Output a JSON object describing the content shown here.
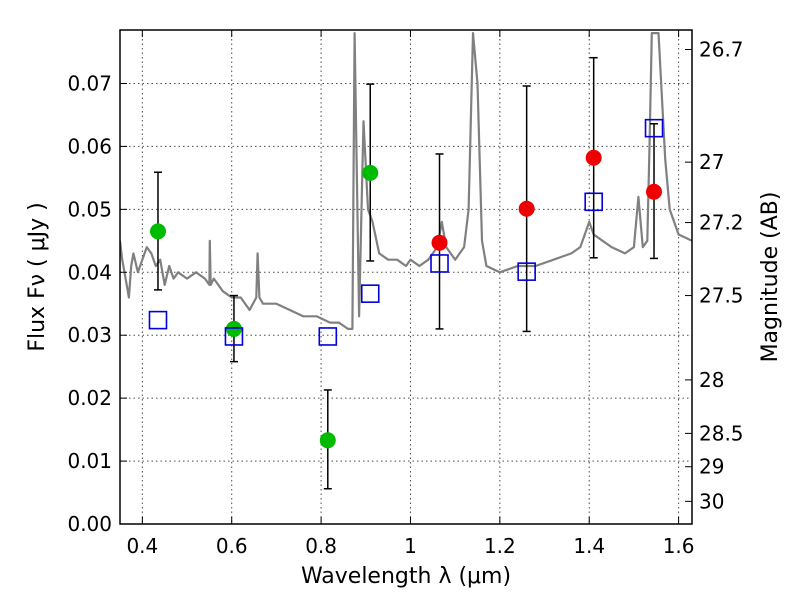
{
  "chart_data": {
    "type": "scatter",
    "title": "",
    "xlabel": "Wavelength  λ (μm)",
    "ylabel": "Flux  Fν  ( μJy )",
    "ylabel_right": "Magnitude (AB)",
    "xlim": [
      0.35,
      1.63
    ],
    "ylim": [
      0.0,
      0.0785
    ],
    "grid": true,
    "x_ticks": [
      0.4,
      0.6,
      0.8,
      1.0,
      1.2,
      1.4,
      1.6
    ],
    "x_tick_labels": [
      "0.4",
      "0.6",
      "0.8",
      "1",
      "1.2",
      "1.4",
      "1.6"
    ],
    "y_ticks": [
      0.0,
      0.01,
      0.02,
      0.03,
      0.04,
      0.05,
      0.06,
      0.07
    ],
    "y_tick_labels": [
      "0.00",
      "0.01",
      "0.02",
      "0.03",
      "0.04",
      "0.05",
      "0.06",
      "0.07"
    ],
    "right_ticks": [
      {
        "label": "26.7",
        "flux": 0.0754
      },
      {
        "label": "27",
        "flux": 0.0575
      },
      {
        "label": "27.2",
        "flux": 0.0479
      },
      {
        "label": "27.5",
        "flux": 0.0363
      },
      {
        "label": "28",
        "flux": 0.0229
      },
      {
        "label": "28.5",
        "flux": 0.0144
      },
      {
        "label": "29",
        "flux": 0.0091
      },
      {
        "label": "30",
        "flux": 0.0036
      }
    ],
    "series": [
      {
        "type": "line",
        "color": "#808080",
        "points": [
          [
            0.35,
            0.045
          ],
          [
            0.355,
            0.042
          ],
          [
            0.36,
            0.04
          ],
          [
            0.365,
            0.038
          ],
          [
            0.37,
            0.036
          ],
          [
            0.375,
            0.041
          ],
          [
            0.38,
            0.043
          ],
          [
            0.39,
            0.04
          ],
          [
            0.4,
            0.042
          ],
          [
            0.41,
            0.044
          ],
          [
            0.42,
            0.043
          ],
          [
            0.43,
            0.041
          ],
          [
            0.44,
            0.042
          ],
          [
            0.45,
            0.038
          ],
          [
            0.46,
            0.041
          ],
          [
            0.47,
            0.039
          ],
          [
            0.48,
            0.04
          ],
          [
            0.5,
            0.039
          ],
          [
            0.52,
            0.04
          ],
          [
            0.54,
            0.039
          ],
          [
            0.55,
            0.038
          ],
          [
            0.551,
            0.045
          ],
          [
            0.553,
            0.038
          ],
          [
            0.56,
            0.039
          ],
          [
            0.58,
            0.037
          ],
          [
            0.6,
            0.036
          ],
          [
            0.62,
            0.036
          ],
          [
            0.64,
            0.034
          ],
          [
            0.655,
            0.036
          ],
          [
            0.658,
            0.043
          ],
          [
            0.662,
            0.036
          ],
          [
            0.67,
            0.035
          ],
          [
            0.7,
            0.035
          ],
          [
            0.73,
            0.034
          ],
          [
            0.76,
            0.033
          ],
          [
            0.79,
            0.033
          ],
          [
            0.82,
            0.032
          ],
          [
            0.84,
            0.032
          ],
          [
            0.86,
            0.031
          ],
          [
            0.87,
            0.031
          ],
          [
            0.875,
            0.078
          ],
          [
            0.885,
            0.033
          ],
          [
            0.895,
            0.064
          ],
          [
            0.905,
            0.05
          ],
          [
            0.915,
            0.048
          ],
          [
            0.93,
            0.043
          ],
          [
            0.95,
            0.042
          ],
          [
            0.97,
            0.042
          ],
          [
            0.99,
            0.041
          ],
          [
            1.0,
            0.042
          ],
          [
            1.02,
            0.041
          ],
          [
            1.04,
            0.042
          ],
          [
            1.05,
            0.043
          ],
          [
            1.06,
            0.044
          ],
          [
            1.07,
            0.048
          ],
          [
            1.08,
            0.044
          ],
          [
            1.1,
            0.042
          ],
          [
            1.12,
            0.044
          ],
          [
            1.13,
            0.05
          ],
          [
            1.14,
            0.078
          ],
          [
            1.15,
            0.07
          ],
          [
            1.16,
            0.045
          ],
          [
            1.17,
            0.041
          ],
          [
            1.2,
            0.04
          ],
          [
            1.24,
            0.041
          ],
          [
            1.28,
            0.041
          ],
          [
            1.32,
            0.042
          ],
          [
            1.36,
            0.043
          ],
          [
            1.38,
            0.044
          ],
          [
            1.39,
            0.046
          ],
          [
            1.4,
            0.048
          ],
          [
            1.41,
            0.046
          ],
          [
            1.43,
            0.045
          ],
          [
            1.45,
            0.044
          ],
          [
            1.48,
            0.043
          ],
          [
            1.5,
            0.044
          ],
          [
            1.51,
            0.052
          ],
          [
            1.52,
            0.044
          ],
          [
            1.53,
            0.045
          ],
          [
            1.535,
            0.06
          ],
          [
            1.54,
            0.078
          ],
          [
            1.555,
            0.078
          ],
          [
            1.57,
            0.058
          ],
          [
            1.58,
            0.05
          ],
          [
            1.6,
            0.046
          ],
          [
            1.63,
            0.045
          ]
        ]
      },
      {
        "type": "scatter",
        "marker": "circle",
        "color": "#00bb00",
        "points": [
          {
            "x": 0.435,
            "y": 0.0465,
            "yerr_low": 0.0372,
            "yerr_high": 0.0559
          },
          {
            "x": 0.605,
            "y": 0.031,
            "yerr_low": 0.0258,
            "yerr_high": 0.0363
          },
          {
            "x": 0.815,
            "y": 0.0133,
            "yerr_low": 0.0056,
            "yerr_high": 0.0213
          },
          {
            "x": 0.91,
            "y": 0.0558,
            "yerr_low": 0.0418,
            "yerr_high": 0.0699
          }
        ]
      },
      {
        "type": "scatter",
        "marker": "circle",
        "color": "#ee0000",
        "points": [
          {
            "x": 1.065,
            "y": 0.0447,
            "yerr_low": 0.031,
            "yerr_high": 0.0588
          },
          {
            "x": 1.26,
            "y": 0.0501,
            "yerr_low": 0.0306,
            "yerr_high": 0.0696
          },
          {
            "x": 1.41,
            "y": 0.0582,
            "yerr_low": 0.0423,
            "yerr_high": 0.0741
          },
          {
            "x": 1.545,
            "y": 0.0528,
            "yerr_low": 0.0422,
            "yerr_high": 0.0636
          }
        ]
      },
      {
        "type": "scatter",
        "marker": "open-square",
        "color": "#0000dd",
        "points": [
          {
            "x": 0.435,
            "y": 0.0324
          },
          {
            "x": 0.605,
            "y": 0.0298
          },
          {
            "x": 0.815,
            "y": 0.0298
          },
          {
            "x": 0.91,
            "y": 0.0366
          },
          {
            "x": 1.065,
            "y": 0.0414
          },
          {
            "x": 1.26,
            "y": 0.0401
          },
          {
            "x": 1.41,
            "y": 0.0512
          },
          {
            "x": 1.545,
            "y": 0.0629
          }
        ]
      }
    ]
  }
}
